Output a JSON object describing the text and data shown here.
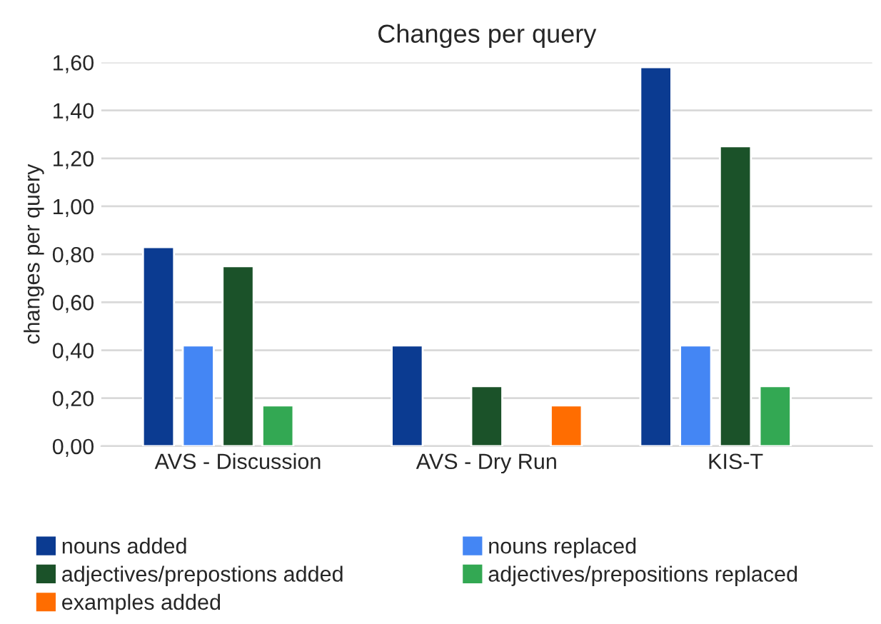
{
  "chart_data": {
    "type": "bar",
    "title": "Changes per query",
    "ylabel": "changes per query",
    "categories": [
      "AVS - Discussion",
      "AVS - Dry Run",
      "KIS-T"
    ],
    "series": [
      {
        "name": "nouns added",
        "color": "#0b3b91",
        "values": [
          0.83,
          0.42,
          1.58
        ]
      },
      {
        "name": "nouns replaced",
        "color": "#4486f4",
        "values": [
          0.42,
          null,
          0.42
        ]
      },
      {
        "name": "adjectives/prepostions added",
        "color": "#1b5229",
        "values": [
          0.75,
          0.25,
          1.25
        ]
      },
      {
        "name": "adjectives/prepositions replaced",
        "color": "#33a853",
        "values": [
          0.17,
          null,
          0.25
        ]
      },
      {
        "name": "examples added",
        "color": "#ff6d01",
        "values": [
          null,
          0.17,
          null
        ]
      }
    ],
    "ylim": [
      0,
      1.6
    ],
    "yticks": [
      {
        "value": 0,
        "label": "0,00"
      },
      {
        "value": 0.2,
        "label": "0,20"
      },
      {
        "value": 0.4,
        "label": "0,40"
      },
      {
        "value": 0.6,
        "label": "0,60"
      },
      {
        "value": 0.8,
        "label": "0,80"
      },
      {
        "value": 1.0,
        "label": "1,00"
      },
      {
        "value": 1.2,
        "label": "1,20"
      },
      {
        "value": 1.4,
        "label": "1,40"
      },
      {
        "value": 1.6,
        "label": "1,60"
      }
    ],
    "grid": "y",
    "legend": "bottom"
  }
}
